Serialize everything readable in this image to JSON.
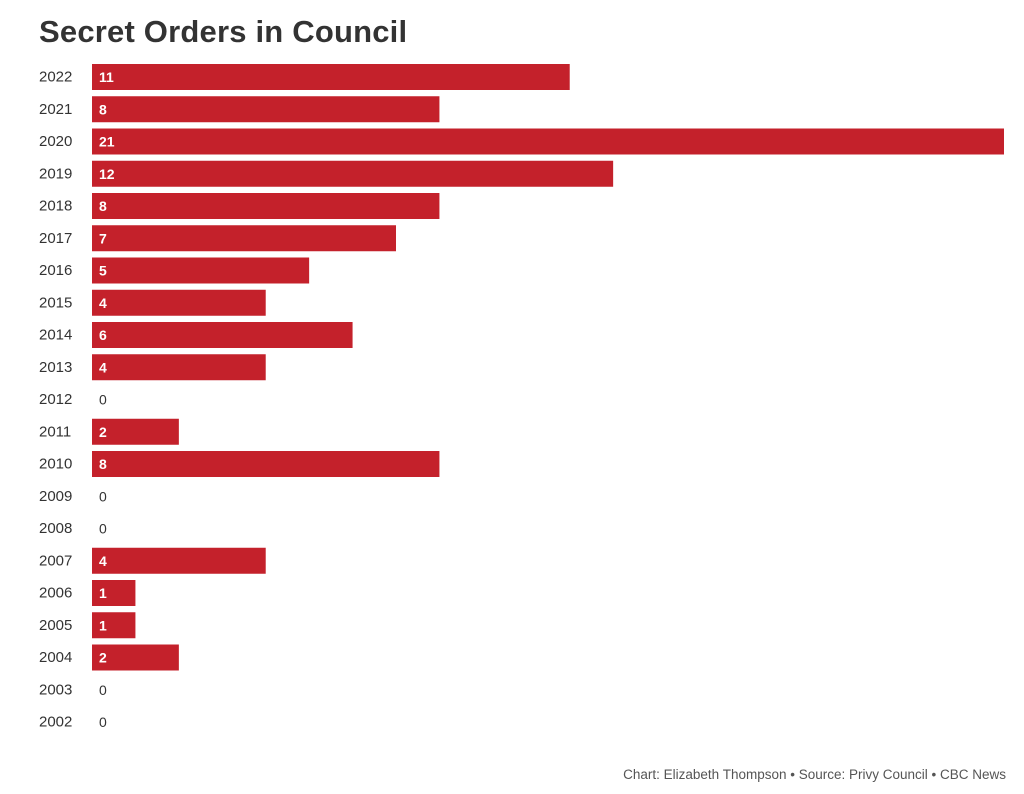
{
  "chart_data": {
    "type": "bar",
    "orientation": "horizontal",
    "title": "Secret Orders in Council",
    "xlabel": "",
    "ylabel": "",
    "categories": [
      "2022",
      "2021",
      "2020",
      "2019",
      "2018",
      "2017",
      "2016",
      "2015",
      "2014",
      "2013",
      "2012",
      "2011",
      "2010",
      "2009",
      "2008",
      "2007",
      "2006",
      "2005",
      "2004",
      "2003",
      "2002"
    ],
    "values": [
      11,
      8,
      21,
      12,
      8,
      7,
      5,
      4,
      6,
      4,
      0,
      2,
      8,
      0,
      0,
      4,
      1,
      1,
      2,
      0,
      0
    ],
    "xlim": [
      0,
      21
    ],
    "grid": false,
    "bar_color": "#c4212b",
    "label_color_inside": "#ffffff",
    "label_color_outside": "#333333"
  },
  "credit": "Chart: Elizabeth Thompson • Source: Privy Council • CBC News"
}
